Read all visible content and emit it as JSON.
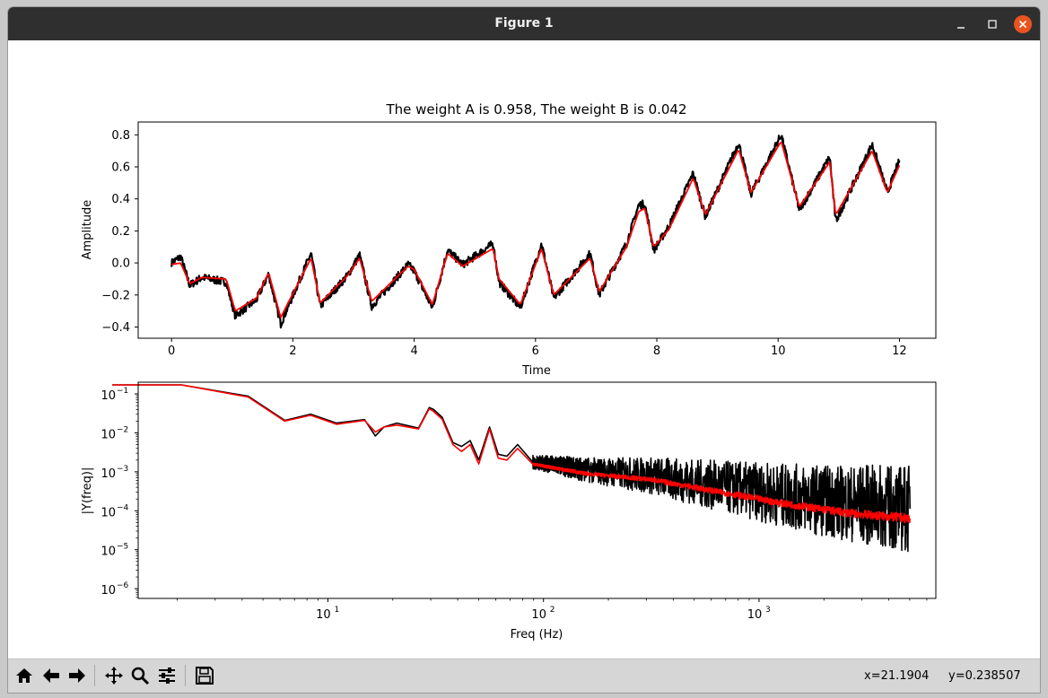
{
  "window": {
    "title": "Figure 1",
    "controls": {
      "minimize": "minimize-icon",
      "maximize": "maximize-icon",
      "close": "close-icon"
    }
  },
  "toolbar": {
    "buttons": [
      {
        "name": "home-button",
        "icon": "home-icon"
      },
      {
        "name": "back-button",
        "icon": "back-arrow-icon"
      },
      {
        "name": "forward-button",
        "icon": "forward-arrow-icon"
      },
      {
        "name": "pan-button",
        "icon": "move-icon"
      },
      {
        "name": "zoom-button",
        "icon": "zoom-icon"
      },
      {
        "name": "configure-subplots-button",
        "icon": "sliders-icon"
      },
      {
        "name": "save-button",
        "icon": "save-icon"
      }
    ],
    "x_coord": "x=21.1904",
    "y_coord": "y=0.238507"
  },
  "colors": {
    "signal": "#000000",
    "fit": "#ff0000",
    "close_button": "#e95420"
  },
  "chart_data": [
    {
      "type": "line",
      "title": "The weight A is 0.958, The weight B is 0.042",
      "xlabel": "Time",
      "ylabel": "Amplitude",
      "xlim": [
        -0.55,
        12.6
      ],
      "ylim": [
        -0.47,
        0.88
      ],
      "xticks": [
        0,
        2,
        4,
        6,
        8,
        10,
        12
      ],
      "yticks": [
        -0.4,
        -0.2,
        0.0,
        0.2,
        0.4,
        0.6,
        0.8
      ],
      "yticklabels": [
        "−0.4",
        "−0.2",
        "0.0",
        "0.2",
        "0.4",
        "0.6",
        "0.8"
      ],
      "series": [
        {
          "name": "signal",
          "color": "#000000",
          "noisy": true,
          "x": [
            0.0,
            0.15,
            0.3,
            0.5,
            0.9,
            1.05,
            1.4,
            1.6,
            1.8,
            2.3,
            2.45,
            2.9,
            3.1,
            3.3,
            3.9,
            4.0,
            4.3,
            4.55,
            4.8,
            5.3,
            5.4,
            5.75,
            6.1,
            6.3,
            6.9,
            7.05,
            7.5,
            7.7,
            7.8,
            7.95,
            8.2,
            8.6,
            8.8,
            9.35,
            9.55,
            10.05,
            10.35,
            10.85,
            10.95,
            11.55,
            11.8,
            12.0
          ],
          "y": [
            0.0,
            0.04,
            -0.14,
            -0.09,
            -0.12,
            -0.33,
            -0.23,
            -0.07,
            -0.38,
            0.06,
            -0.27,
            -0.08,
            0.05,
            -0.27,
            -0.01,
            -0.05,
            -0.28,
            0.08,
            -0.01,
            0.12,
            -0.12,
            -0.28,
            0.12,
            -0.22,
            0.06,
            -0.2,
            0.12,
            0.36,
            0.37,
            0.08,
            0.23,
            0.56,
            0.29,
            0.75,
            0.43,
            0.8,
            0.33,
            0.66,
            0.26,
            0.74,
            0.44,
            0.64
          ]
        },
        {
          "name": "fit",
          "color": "#ff0000",
          "noisy": false,
          "x": [
            0.0,
            0.15,
            0.3,
            0.5,
            0.9,
            1.05,
            1.4,
            1.6,
            1.8,
            2.3,
            2.45,
            2.9,
            3.1,
            3.3,
            3.9,
            4.0,
            4.3,
            4.55,
            4.8,
            5.3,
            5.4,
            5.75,
            6.1,
            6.3,
            6.9,
            7.05,
            7.5,
            7.7,
            7.8,
            7.95,
            8.2,
            8.6,
            8.8,
            9.35,
            9.55,
            10.05,
            10.35,
            10.85,
            10.95,
            11.55,
            11.8,
            12.0
          ],
          "y": [
            -0.01,
            0.0,
            -0.13,
            -0.09,
            -0.1,
            -0.3,
            -0.22,
            -0.06,
            -0.34,
            0.03,
            -0.25,
            -0.08,
            0.03,
            -0.24,
            -0.02,
            -0.04,
            -0.26,
            0.06,
            -0.02,
            0.09,
            -0.1,
            -0.26,
            0.09,
            -0.2,
            0.03,
            -0.18,
            0.1,
            0.32,
            0.34,
            0.1,
            0.21,
            0.53,
            0.3,
            0.71,
            0.44,
            0.76,
            0.35,
            0.63,
            0.3,
            0.7,
            0.44,
            0.61
          ]
        }
      ]
    },
    {
      "type": "line",
      "scale": "log-log",
      "title": "",
      "xlabel": "Freq (Hz)",
      "ylabel": "|Y(freq)|",
      "xlim_log10": [
        0.12,
        3.82
      ],
      "ylim_log10": [
        -6.25,
        -0.7
      ],
      "xticks": [
        {
          "value_log10": 1,
          "label": "10",
          "exp": "1"
        },
        {
          "value_log10": 2,
          "label": "10",
          "exp": "2"
        },
        {
          "value_log10": 3,
          "label": "10",
          "exp": "3"
        }
      ],
      "yticks": [
        {
          "value_log10": -1,
          "label": "10",
          "exp": "−1"
        },
        {
          "value_log10": -2,
          "label": "10",
          "exp": "−2"
        },
        {
          "value_log10": -3,
          "label": "10",
          "exp": "−3"
        },
        {
          "value_log10": -4,
          "label": "10",
          "exp": "−4"
        },
        {
          "value_log10": -5,
          "label": "10",
          "exp": "−5"
        },
        {
          "value_log10": -6,
          "label": "10",
          "exp": "−6"
        }
      ],
      "series": [
        {
          "name": "signal",
          "color": "#000000",
          "noise_growth": true,
          "x_log10": [
            0.0,
            0.32,
            0.63,
            0.8,
            0.92,
            1.04,
            1.17,
            1.22,
            1.26,
            1.32,
            1.42,
            1.47,
            1.49,
            1.53,
            1.58,
            1.62,
            1.66,
            1.7,
            1.75,
            1.79,
            1.83,
            1.88,
            1.95,
            2.05,
            2.2,
            2.5,
            2.8,
            3.1,
            3.4,
            3.7
          ],
          "y_log10": [
            -0.77,
            -0.77,
            -1.06,
            -1.68,
            -1.52,
            -1.75,
            -1.66,
            -2.08,
            -1.85,
            -1.75,
            -1.88,
            -1.35,
            -1.4,
            -1.6,
            -2.25,
            -2.35,
            -2.2,
            -2.7,
            -1.85,
            -2.55,
            -2.6,
            -2.3,
            -2.75,
            -2.82,
            -2.95,
            -3.1,
            -3.35,
            -3.6,
            -3.8,
            -3.95
          ]
        },
        {
          "name": "fit",
          "color": "#ff0000",
          "noise_growth": false,
          "x_log10": [
            0.0,
            0.32,
            0.63,
            0.8,
            0.92,
            1.04,
            1.17,
            1.22,
            1.26,
            1.32,
            1.42,
            1.47,
            1.49,
            1.53,
            1.58,
            1.62,
            1.66,
            1.7,
            1.75,
            1.79,
            1.83,
            1.88,
            1.95,
            2.05,
            2.2,
            2.5,
            2.8,
            3.1,
            3.4,
            3.7
          ],
          "y_log10": [
            -0.77,
            -0.77,
            -1.08,
            -1.7,
            -1.55,
            -1.78,
            -1.68,
            -1.98,
            -1.85,
            -1.8,
            -1.9,
            -1.38,
            -1.45,
            -1.65,
            -2.3,
            -2.48,
            -2.3,
            -2.8,
            -1.9,
            -2.65,
            -2.7,
            -2.4,
            -2.8,
            -2.9,
            -3.05,
            -3.2,
            -3.5,
            -3.8,
            -4.05,
            -4.2
          ]
        }
      ]
    }
  ]
}
